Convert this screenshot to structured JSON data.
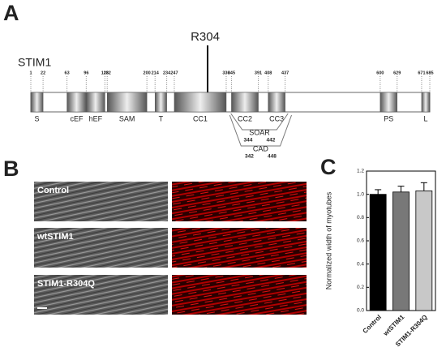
{
  "panel_a": {
    "letter": "A",
    "protein": "STIM1",
    "mutation": "R304",
    "positions": [
      1,
      22,
      63,
      96,
      128,
      132,
      200,
      214,
      234,
      247,
      336,
      345,
      391,
      408,
      437,
      600,
      629,
      671,
      685
    ],
    "domains": [
      "S",
      "cEF",
      "hEF",
      "SAM",
      "T",
      "CC1",
      "CC2",
      "CC3",
      "PS",
      "L"
    ],
    "regions": [
      {
        "name": "SOAR",
        "start": 344,
        "end": 442
      },
      {
        "name": "CAD",
        "start": 342,
        "end": 448
      }
    ]
  },
  "panel_b": {
    "letter": "B",
    "rows": [
      "Control",
      "wtSTIM1",
      "STIM1-R304Q"
    ]
  },
  "panel_c": {
    "letter": "C"
  },
  "chart_data": {
    "type": "bar",
    "y_label": "Normalized width of myotubes",
    "categories": [
      "Control",
      "wtSTIM1",
      "STIM1-R304Q"
    ],
    "values": [
      1.0,
      1.02,
      1.03
    ],
    "errors": [
      0.04,
      0.05,
      0.07
    ],
    "colors": [
      "#000000",
      "#787878",
      "#c8c8c8"
    ],
    "ylim": [
      0,
      1.2
    ],
    "yticks": [
      {
        "value": 0,
        "label": "0.0"
      },
      {
        "value": 0.2,
        "label": "0.2"
      },
      {
        "value": 0.4,
        "label": "0.4"
      },
      {
        "value": 0.6,
        "label": "0.6"
      },
      {
        "value": 0.8,
        "label": "0.8"
      },
      {
        "value": 1,
        "label": "1.0"
      },
      {
        "value": 1.2,
        "label": "1.2"
      }
    ]
  }
}
